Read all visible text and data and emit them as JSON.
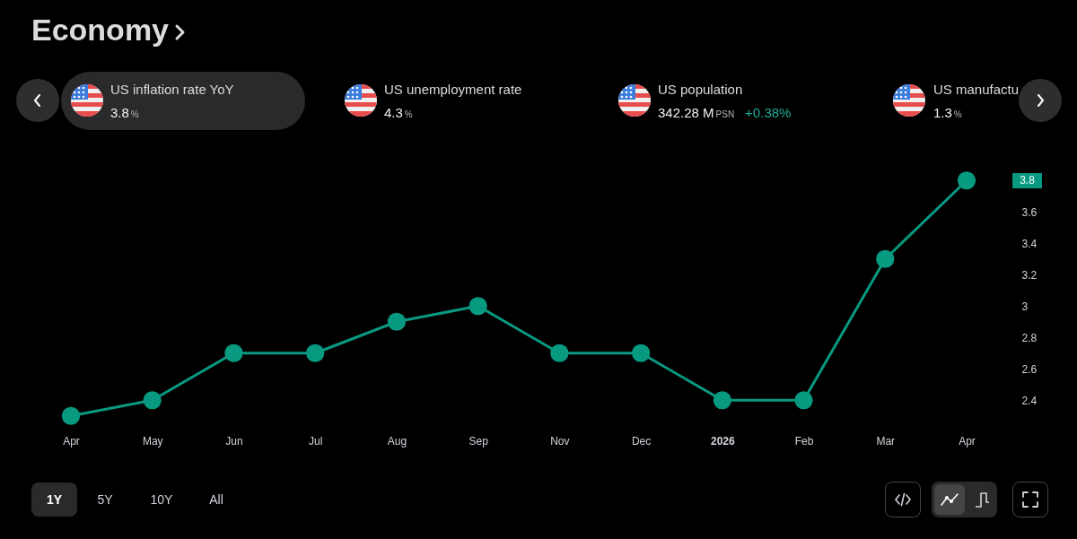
{
  "chart_data": {
    "type": "line",
    "title": "Economy",
    "categories": [
      "Apr",
      "May",
      "Jun",
      "Jul",
      "Aug",
      "Sep",
      "Nov",
      "Dec",
      "2026",
      "Feb",
      "Mar",
      "Apr"
    ],
    "values": [
      2.3,
      2.4,
      2.7,
      2.7,
      2.9,
      3.0,
      2.7,
      2.7,
      2.4,
      2.4,
      3.3,
      3.8
    ],
    "color": "#089981",
    "marker": "circle",
    "line_style": "solid",
    "ylim": [
      2.1,
      3.95
    ],
    "yticks": [
      2.4,
      2.6,
      2.8,
      3,
      3.2,
      3.4,
      3.6
    ],
    "annotations": [
      "US inflation rate YoY",
      "3.8",
      "%",
      "US unemployment rate",
      "4.3",
      "%",
      "US population",
      "342.28 M",
      "PSN",
      "+0.38%",
      "US manufactu",
      "1.3",
      "%",
      "1Y",
      "5Y",
      "10Y",
      "All",
      {
        "text": "3.8",
        "y": 3.8
      }
    ]
  }
}
